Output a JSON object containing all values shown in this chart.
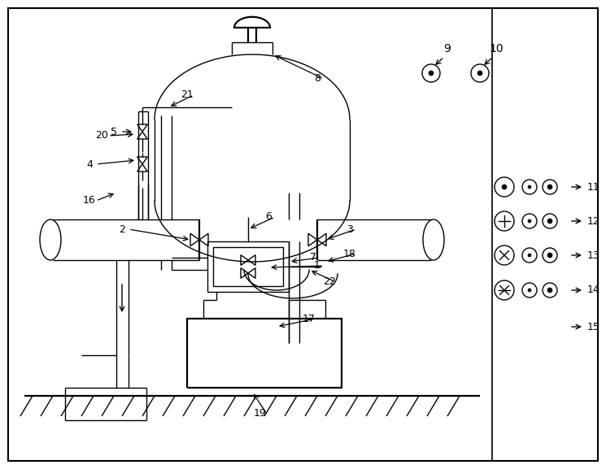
{
  "bg_color": "#ffffff",
  "line_color": "#000000",
  "fig_width": 7.45,
  "fig_height": 5.77,
  "dpi": 100
}
